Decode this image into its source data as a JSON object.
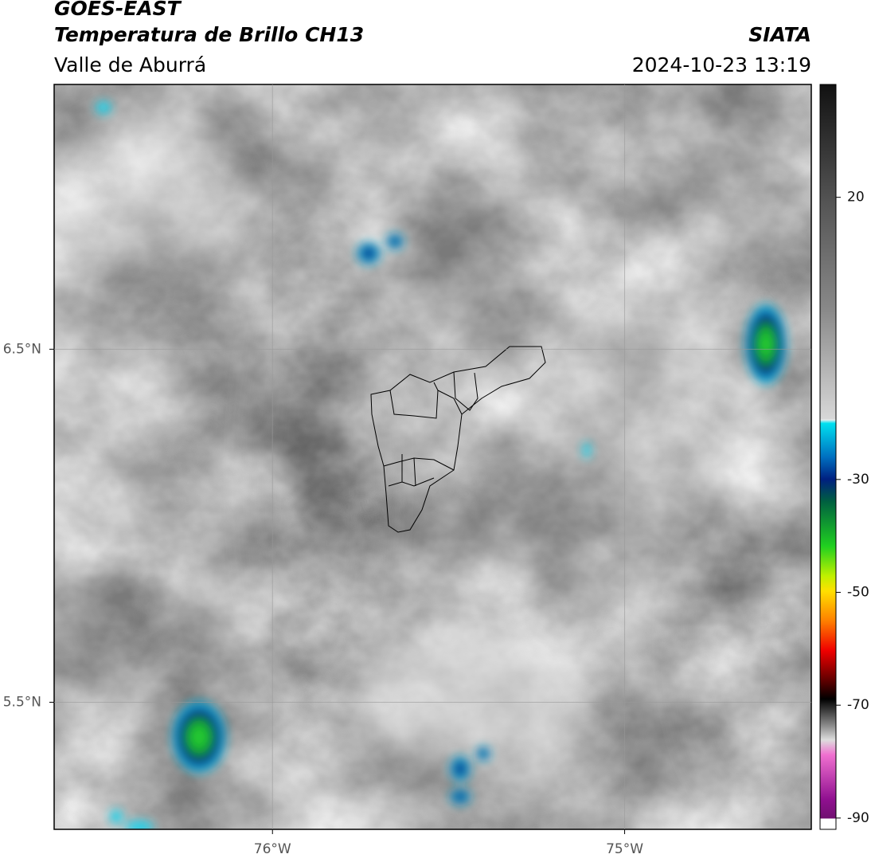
{
  "header": {
    "title": "GOES-EAST",
    "subtitle": "Temperatura de Brillo CH13",
    "region": "Valle de Aburrá",
    "source": "SIATA",
    "datetime": "2024-10-23 13:19"
  },
  "map": {
    "xlim": [
      -76.62,
      -74.47
    ],
    "ylim": [
      5.14,
      7.25
    ],
    "xticks": [
      {
        "value": -76,
        "label": "76°W"
      },
      {
        "value": -75,
        "label": "75°W"
      }
    ],
    "yticks": [
      {
        "value": 6.5,
        "label": "6.5°N"
      },
      {
        "value": 5.5,
        "label": "5.5°N"
      }
    ]
  },
  "colorbar": {
    "lim": [
      -92,
      40
    ],
    "ticks": [
      20,
      -30,
      -50,
      -70,
      -90
    ]
  }
}
